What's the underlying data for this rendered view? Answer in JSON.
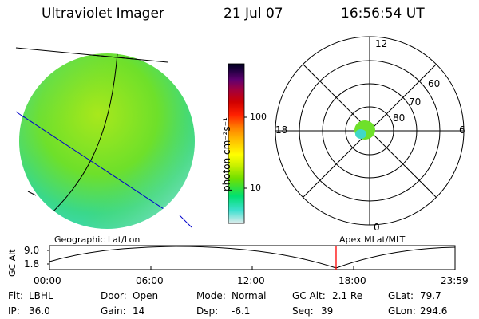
{
  "header": {
    "title": "Ultraviolet Imager",
    "date": "21 Jul 07",
    "time": "16:56:54 UT"
  },
  "colorbar": {
    "label": "photon cm⁻²s⁻¹",
    "ticks": [
      "100",
      "10"
    ],
    "scale": "log",
    "colors": [
      "#e0ecec",
      "#40e0d0",
      "#00e070",
      "#70e000",
      "#c8f000",
      "#ffff00",
      "#ffc000",
      "#ff8000",
      "#ff2000",
      "#d00000",
      "#a00040",
      "#600070",
      "#200040",
      "#000020"
    ]
  },
  "polar_plot": {
    "hour_labels": {
      "top": "12",
      "left": "18",
      "right": "6",
      "bottom": "0"
    },
    "lat_labels": [
      "60",
      "70",
      "80"
    ]
  },
  "labels": {
    "geo": "Geographic Lat/Lon",
    "apex": "Apex MLat/MLT"
  },
  "timeline": {
    "ylabel": "GC Alt",
    "y_ticks": [
      "9.0",
      "1.8"
    ],
    "x_ticks": [
      "00:00",
      "06:00",
      "12:00",
      "18:00",
      "23:59"
    ],
    "current_marker_time": "16:56:54",
    "marker_color": "#ff0000"
  },
  "info": {
    "flt_label": "Flt:",
    "flt_value": "LBHL",
    "ip_label": "IP:",
    "ip_value": "36.0",
    "door_label": "Door:",
    "door_value": "Open",
    "gain_label": "Gain:",
    "gain_value": "14",
    "mode_label": "Mode:",
    "mode_value": "Normal",
    "dsp_label": "Dsp:",
    "dsp_value": "-6.1",
    "gcalt_label": "GC Alt:",
    "gcalt_value": "2.1 Re",
    "seq_label": "Seq:",
    "seq_value": "39",
    "glat_label": "GLat:",
    "glat_value": "79.7",
    "glon_label": "GLon:",
    "glon_value": "294.6"
  }
}
